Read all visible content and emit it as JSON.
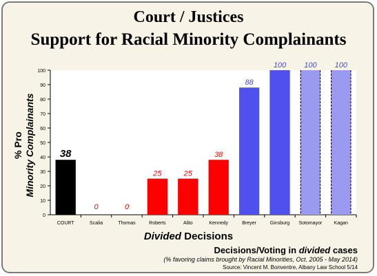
{
  "title_line1": "Court / Justices",
  "title_line2": "Support for Racial Minority Complainants",
  "ylabel_line1": "% Pro",
  "ylabel_line2": "Minority Complainants",
  "xlabel_italic": "Divided",
  "xlabel_rest": "Decisions",
  "caption_line1_pre": "Decisions/Voting  in ",
  "caption_line1_italic": "divided",
  "caption_line1_post": " cases",
  "caption_line2": "(% favoring claims brought by Racial Minorities, Oct. 2005 - May 2014)",
  "caption_line3": "Source:  Vincent  M.  Bonventre,   Albany Law School  5/14",
  "chart_data": {
    "type": "bar",
    "categories": [
      "COURT",
      "Scalia",
      "Thomas",
      "Roberts",
      "Alito",
      "Kennedy",
      "Breyer",
      "Ginsburg",
      "Sotomayor",
      "Kagan"
    ],
    "values": [
      38,
      0,
      0,
      25,
      25,
      38,
      88,
      100,
      100,
      100
    ],
    "data_labels": [
      "38",
      "0",
      "0",
      "25",
      "25",
      "38",
      "88",
      "100",
      "100",
      "100"
    ],
    "ylim": [
      0,
      100
    ],
    "yticks": [
      0,
      10,
      20,
      30,
      40,
      50,
      60,
      70,
      80,
      90,
      100
    ],
    "grid": false,
    "bar_colors": [
      "#000000",
      "#ff0000",
      "#ff0000",
      "#ff0000",
      "#ff0000",
      "#ff0000",
      "#5050ee",
      "#5050ee",
      "#9a9af0",
      "#9a9af0"
    ],
    "label_colors": [
      "#000000",
      "#ff0000",
      "#ff0000",
      "#ff0000",
      "#ff0000",
      "#ff0000",
      "#4a4ad8",
      "#4a4ad8",
      "#4a4ad8",
      "#4a4ad8"
    ],
    "dashed_bars": [
      false,
      false,
      false,
      false,
      false,
      false,
      false,
      false,
      true,
      true
    ],
    "plot_background": "#ffffff"
  }
}
